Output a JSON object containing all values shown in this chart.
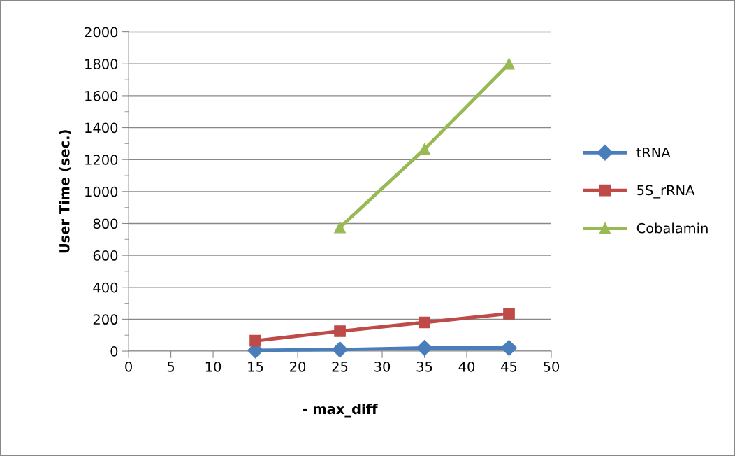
{
  "chart_data": {
    "type": "line",
    "xlabel": "- max_diff",
    "ylabel": "User Time (sec.)",
    "xlim": [
      0,
      50
    ],
    "xticks": [
      0,
      5,
      10,
      15,
      20,
      25,
      30,
      35,
      40,
      45,
      50
    ],
    "ylim": [
      0,
      2000
    ],
    "yticks": [
      0,
      200,
      400,
      600,
      800,
      1000,
      1200,
      1400,
      1600,
      1800,
      2000
    ],
    "grid": "y",
    "legend": "right",
    "series": [
      {
        "name": "tRNA",
        "color": "#4a7ebb",
        "marker": "diamond",
        "x": [
          15,
          25,
          35,
          45
        ],
        "values": [
          5,
          10,
          20,
          20
        ]
      },
      {
        "name": "5S_rRNA",
        "color": "#be4b48",
        "marker": "square",
        "x": [
          15,
          25,
          35,
          45
        ],
        "values": [
          65,
          125,
          180,
          235
        ]
      },
      {
        "name": "Cobalamin",
        "color": "#98b954",
        "marker": "triangle",
        "x": [
          25,
          35,
          45
        ],
        "values": [
          775,
          1265,
          1800
        ]
      }
    ]
  }
}
